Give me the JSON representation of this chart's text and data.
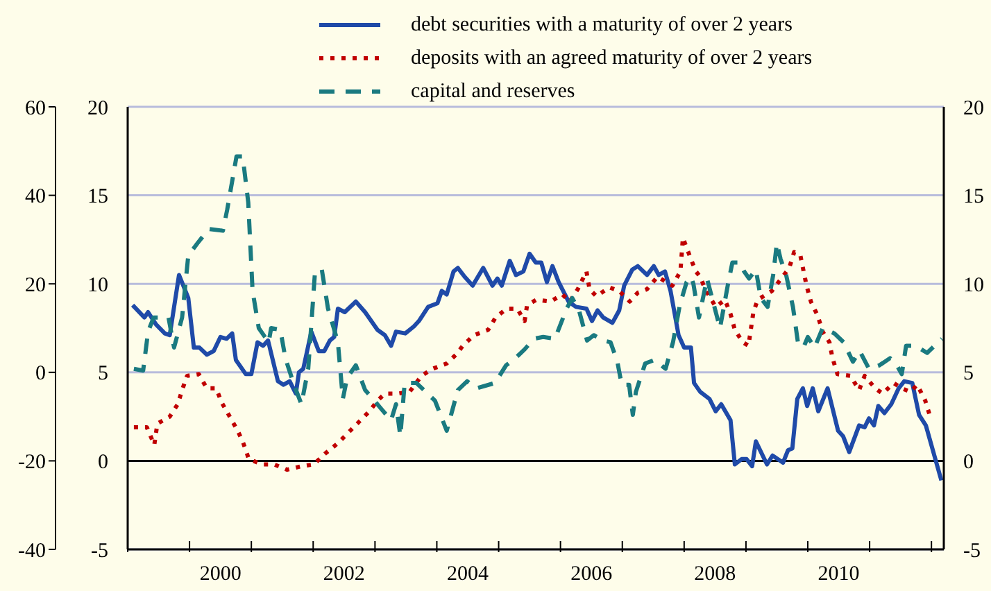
{
  "chart_data": {
    "type": "line",
    "legend": "top",
    "grid": "y",
    "xlim": [
      1998.5,
      2011.7
    ],
    "xticks": [
      {
        "value": 1998.5,
        "label": null
      },
      {
        "value": 1999.5,
        "label": null
      },
      2000,
      {
        "value": 2000.5,
        "label": null
      },
      {
        "value": 2001.5,
        "label": null
      },
      2002,
      {
        "value": 2002.5,
        "label": null
      },
      {
        "value": 2003.5,
        "label": null
      },
      2004,
      {
        "value": 2004.5,
        "label": null
      },
      {
        "value": 2005.5,
        "label": null
      },
      2006,
      {
        "value": 2006.5,
        "label": null
      },
      {
        "value": 2007.5,
        "label": null
      },
      2008,
      {
        "value": 2008.5,
        "label": null
      },
      {
        "value": 2009.5,
        "label": null
      },
      2010,
      {
        "value": 2010.5,
        "label": null
      },
      {
        "value": 2011.5,
        "label": null
      }
    ],
    "ylim": [
      -5,
      20
    ],
    "yticks": [
      -5,
      0,
      5,
      10,
      15,
      20
    ],
    "y2lim": [
      -5,
      20
    ],
    "y2ticks": [
      -5,
      0,
      5,
      10,
      15,
      20
    ],
    "y3lim": [
      -40,
      60
    ],
    "y3ticks": [
      -40,
      -20,
      0,
      20,
      40,
      60
    ],
    "ref_lines": [
      {
        "axis": "y",
        "value": 0,
        "color": "#000000"
      }
    ],
    "series": [
      {
        "name": "debt securities with a maturity of over 2 years",
        "color": "#1f4aa8",
        "line_style": "solid",
        "x": [
          1998.58,
          1998.77,
          1998.83,
          1998.96,
          1999.1,
          1999.18,
          1999.33,
          1999.48,
          1999.57,
          1999.66,
          1999.78,
          1999.89,
          2000,
          2000.1,
          2000.19,
          2000.25,
          2000.41,
          2000.5,
          2000.6,
          2000.69,
          2000.77,
          2000.93,
          2001.02,
          2001.12,
          2001.22,
          2001.27,
          2001.34,
          2001.47,
          2001.59,
          2001.68,
          2001.77,
          2001.84,
          2001.9,
          2002.01,
          2002.19,
          2002.34,
          2002.54,
          2002.66,
          2002.76,
          2002.84,
          2002.99,
          2003.13,
          2003.21,
          2003.36,
          2003.51,
          2003.58,
          2003.66,
          2003.77,
          2003.84,
          2003.95,
          2004.08,
          2004.25,
          2004.4,
          2004.48,
          2004.55,
          2004.68,
          2004.78,
          2004.9,
          2005,
          2005.1,
          2005.19,
          2005.28,
          2005.37,
          2005.47,
          2005.63,
          2005.75,
          2005.92,
          2006.01,
          2006.1,
          2006.19,
          2006.34,
          2006.45,
          2006.53,
          2006.66,
          2006.75,
          2006.9,
          2007.01,
          2007.09,
          2007.19,
          2007.28,
          2007.41,
          2007.5,
          2007.61,
          2007.66,
          2007.76,
          2007.91,
          2008.01,
          2008.1,
          2008.25,
          2008.32,
          2008.43,
          2008.51,
          2008.6,
          2008.66,
          2008.84,
          2008.93,
          2009.1,
          2009.18,
          2009.25,
          2009.33,
          2009.42,
          2009.49,
          2009.58,
          2009.67,
          2009.82,
          2009.99,
          2010.07,
          2010.17,
          2010.33,
          2010.42,
          2010.49,
          2010.57,
          2010.64,
          2010.74,
          2010.85,
          2010.97,
          2011.06,
          2011.19,
          2011.3,
          2011.41,
          2011.66
        ],
        "values": [
          8.8,
          8.1,
          8.4,
          7.7,
          7.2,
          7.1,
          10.5,
          9.2,
          6.4,
          6.4,
          6,
          6.2,
          7,
          6.9,
          7.2,
          5.7,
          4.9,
          4.9,
          6.7,
          6.5,
          6.8,
          4.5,
          4.3,
          4.5,
          3.8,
          5,
          5.2,
          7.3,
          6.2,
          6.2,
          6.8,
          7,
          8.6,
          8.4,
          9,
          8.4,
          7.4,
          7.1,
          6.5,
          7.3,
          7.2,
          7.6,
          7.9,
          8.7,
          8.9,
          9.6,
          9.4,
          10.7,
          10.9,
          10.4,
          9.9,
          10.9,
          9.9,
          10.3,
          9.9,
          11.3,
          10.5,
          10.7,
          11.7,
          11.2,
          11.2,
          10.1,
          11,
          10.1,
          9,
          8.7,
          8.6,
          7.9,
          8.5,
          8.1,
          7.8,
          8.5,
          9.9,
          10.8,
          11,
          10.5,
          11,
          10.5,
          10.7,
          9.6,
          7.1,
          6.4,
          6.4,
          4.4,
          3.9,
          3.5,
          2.8,
          3.2,
          2.3,
          -0.2,
          0.1,
          0.1,
          -0.3,
          1.1,
          -0.2,
          0.3,
          -0.1,
          0.6,
          0.7,
          3.5,
          4.1,
          3.1,
          4.1,
          2.8,
          4.1,
          1.7,
          1.4,
          0.5,
          2,
          1.9,
          2.4,
          2,
          3.1,
          2.7,
          3.2,
          4.1,
          4.5,
          4.4,
          2.6,
          2,
          -1.1
        ]
      },
      {
        "name": "deposits with an agreed maturity of over 2 years",
        "color": "#c00000",
        "line_style": "dotted",
        "x": [
          1998.6,
          1998.81,
          1998.93,
          1998.98,
          1999.18,
          1999.31,
          1999.38,
          1999.46,
          1999.65,
          1999.78,
          1999.93,
          2000.02,
          2000.15,
          2000.28,
          2000.37,
          2000.46,
          2000.67,
          2000.87,
          2001.08,
          2001.31,
          2001.51,
          2001.69,
          2001.9,
          2002.07,
          2002.24,
          2002.41,
          2002.54,
          2002.66,
          2002.87,
          2003.06,
          2003.25,
          2003.43,
          2003.66,
          2003.81,
          2003.92,
          2004.1,
          2004.33,
          2004.45,
          2004.63,
          2004.8,
          2004.92,
          2004.96,
          2005.11,
          2005.34,
          2005.53,
          2005.65,
          2005.78,
          2005.92,
          2005.97,
          2006.08,
          2006.29,
          2006.45,
          2006.62,
          2006.75,
          2006.9,
          2007.07,
          2007.31,
          2007.44,
          2007.48,
          2007.61,
          2007.69,
          2007.76,
          2007.84,
          2008.01,
          2008.16,
          2008.25,
          2008.32,
          2008.45,
          2008.54,
          2008.62,
          2008.69,
          2008.92,
          2009.07,
          2009.2,
          2009.28,
          2009.38,
          2009.48,
          2009.55,
          2009.66,
          2009.74,
          2009.85,
          2009.9,
          2009.98,
          2010.19,
          2010.33,
          2010.42,
          2010.59,
          2010.71,
          2010.89,
          2011.02,
          2011.16,
          2011.27,
          2011.4,
          2011.47
        ],
        "values": [
          1.9,
          1.9,
          0.9,
          2.1,
          2.5,
          3.2,
          4,
          4.8,
          4.9,
          4.1,
          4.1,
          3.3,
          2.5,
          1.7,
          1,
          0.1,
          -0.2,
          -0.2,
          -0.5,
          -0.3,
          -0.2,
          0.4,
          1,
          1.6,
          2.2,
          2.8,
          3.4,
          3.8,
          3.8,
          3.9,
          4.8,
          5.2,
          5.5,
          6,
          6.5,
          7.1,
          7.4,
          8.1,
          8.6,
          8.6,
          7.9,
          8.8,
          9.1,
          9,
          9.4,
          9,
          9.7,
          10.7,
          9.7,
          9.3,
          9.8,
          9.6,
          9,
          9.5,
          9.7,
          10.4,
          9.9,
          10.7,
          12.6,
          11.4,
          10.7,
          10.4,
          9.7,
          8.7,
          9.1,
          8.3,
          7.4,
          6.7,
          6.5,
          8.4,
          9.1,
          9.6,
          10.3,
          10.9,
          11.8,
          11.6,
          9.9,
          9,
          8.2,
          7.3,
          6.7,
          5.8,
          4.9,
          4.8,
          4,
          4.8,
          4.1,
          3.8,
          4.4,
          4.1,
          3.9,
          4.3,
          3.4,
          2.6
        ]
      },
      {
        "name": "capital and reserves",
        "color": "#1a7a80",
        "line_style": "dashed",
        "x": [
          1998.6,
          1998.75,
          1998.83,
          1998.92,
          1999.16,
          1999.25,
          1999.38,
          1999.48,
          1999.63,
          1999.81,
          2000.04,
          2000.11,
          2000.26,
          2000.36,
          2000.45,
          2000.52,
          2000.62,
          2000.78,
          2000.82,
          2000.97,
          2001.05,
          2001.19,
          2001.31,
          2001.42,
          2001.53,
          2001.64,
          2001.74,
          2001.9,
          2001.98,
          2002.05,
          2002.19,
          2002.34,
          2002.49,
          2002.61,
          2002.76,
          2002.84,
          2002.91,
          2002.98,
          2003.17,
          2003.47,
          2003.66,
          2003.84,
          2003.99,
          2004.14,
          2004.44,
          2004.62,
          2004.77,
          2004.92,
          2005.07,
          2005.22,
          2005.41,
          2005.6,
          2005.69,
          2005.8,
          2005.93,
          2006.04,
          2006.19,
          2006.31,
          2006.42,
          2006.49,
          2006.61,
          2006.67,
          2006.72,
          2006.87,
          2007.02,
          2007.2,
          2007.32,
          2007.43,
          2007.54,
          2007.61,
          2007.65,
          2007.74,
          2007.87,
          2007.96,
          2008.08,
          2008.21,
          2008.28,
          2008.4,
          2008.47,
          2008.55,
          2008.66,
          2008.74,
          2008.85,
          2008.94,
          2009,
          2009.06,
          2009.15,
          2009.26,
          2009.34,
          2009.43,
          2009.5,
          2009.61,
          2009.74,
          2009.93,
          2010.08,
          2010.23,
          2010.34,
          2010.49,
          2010.66,
          2010.83,
          2010.94,
          2011.02,
          2011.09,
          2011.24,
          2011.43,
          2011.67
        ],
        "values": [
          5.2,
          5.1,
          7.3,
          8.1,
          8.1,
          6.4,
          8.1,
          11.6,
          12.3,
          13.1,
          13,
          14.2,
          17.2,
          17.2,
          14.6,
          9.6,
          7.5,
          6.7,
          7.5,
          7.4,
          5.8,
          4.3,
          3.2,
          5.2,
          10.7,
          10.8,
          8.6,
          6.7,
          3.5,
          4.7,
          5.4,
          4,
          3.4,
          2.9,
          2.3,
          3.2,
          1.4,
          4.4,
          4.4,
          3.4,
          1.7,
          4,
          4.5,
          4.1,
          4.4,
          5.4,
          5.8,
          6.3,
          6.9,
          7,
          6.9,
          8.6,
          9.2,
          8.5,
          6.8,
          7.1,
          6.8,
          6.7,
          5.6,
          4.3,
          4.3,
          2.6,
          3.9,
          5.5,
          5.7,
          5.2,
          6.7,
          8.8,
          10.1,
          10.4,
          10,
          8.1,
          10.3,
          9.1,
          7.5,
          10,
          11.2,
          11.2,
          10.7,
          10.3,
          10.8,
          9.2,
          8.7,
          10.5,
          12.3,
          11.4,
          10.5,
          8.7,
          6.7,
          6.4,
          7,
          6.4,
          7.5,
          7.2,
          6.7,
          5.6,
          6.2,
          5.2,
          5.4,
          5.8,
          5.4,
          4.9,
          6.5,
          6.5,
          6.1,
          6.9
        ]
      }
    ]
  }
}
